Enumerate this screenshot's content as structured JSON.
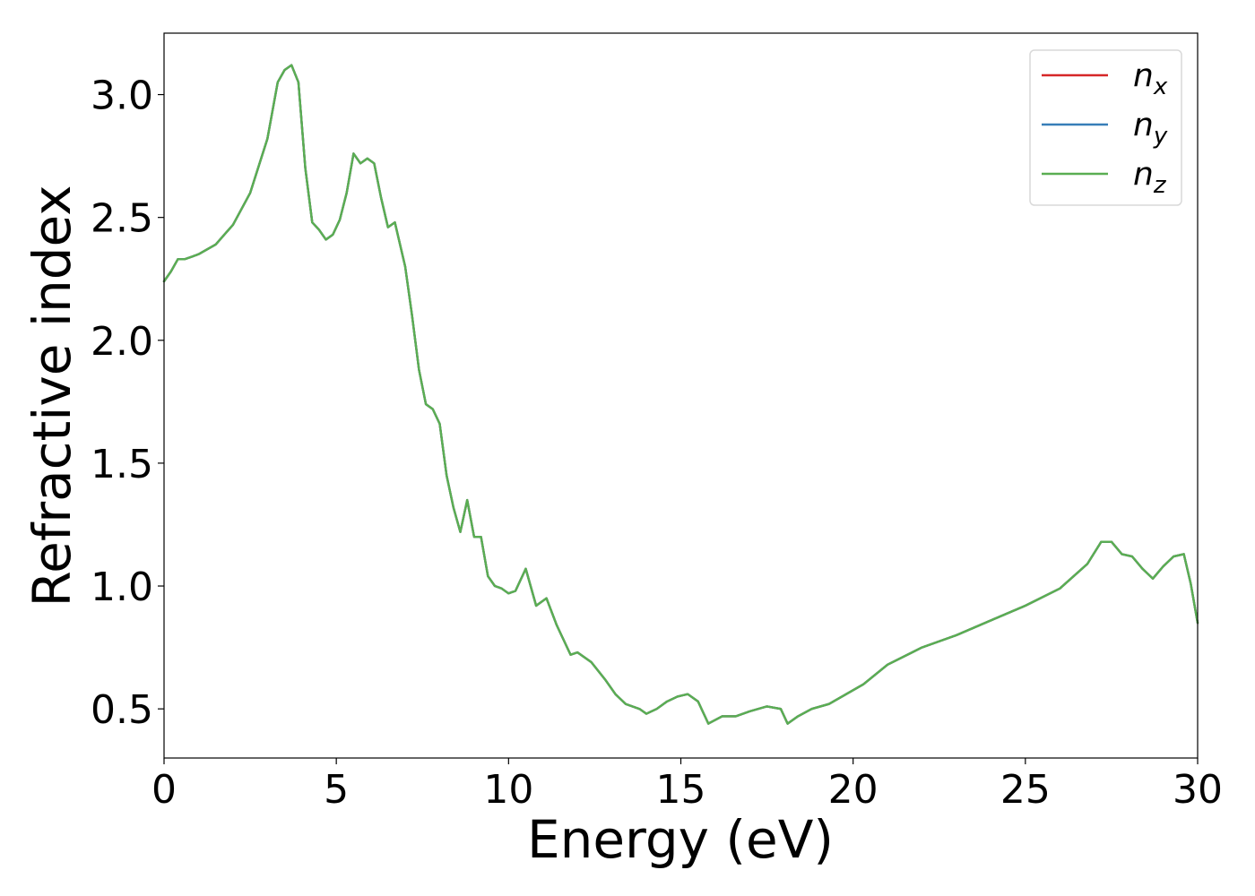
{
  "chart_data": {
    "type": "line",
    "xlabel": "Energy (eV)",
    "ylabel": "Refractive index",
    "xlim": [
      0,
      30
    ],
    "ylim": [
      0.3,
      3.25
    ],
    "xticks": [
      0,
      5,
      10,
      15,
      20,
      25,
      30
    ],
    "xtick_labels": [
      "0",
      "5",
      "10",
      "15",
      "20",
      "25",
      "30"
    ],
    "yticks": [
      0.5,
      1.0,
      1.5,
      2.0,
      2.5,
      3.0
    ],
    "ytick_labels": [
      "0.5",
      "1.0",
      "1.5",
      "2.0",
      "2.5",
      "3.0"
    ],
    "grid": false,
    "legend_position": "top-right",
    "x": [
      0,
      0.2,
      0.4,
      0.6,
      0.8,
      1.0,
      1.5,
      2.0,
      2.5,
      3.0,
      3.3,
      3.5,
      3.7,
      3.9,
      4.1,
      4.3,
      4.5,
      4.7,
      4.9,
      5.1,
      5.3,
      5.5,
      5.7,
      5.9,
      6.1,
      6.3,
      6.5,
      6.7,
      7.0,
      7.2,
      7.4,
      7.6,
      7.8,
      8.0,
      8.2,
      8.4,
      8.6,
      8.8,
      9.0,
      9.2,
      9.4,
      9.6,
      9.8,
      10.0,
      10.2,
      10.5,
      10.8,
      11.1,
      11.4,
      11.8,
      12.0,
      12.4,
      12.8,
      13.1,
      13.4,
      13.8,
      14.0,
      14.3,
      14.6,
      14.9,
      15.2,
      15.5,
      15.8,
      16.2,
      16.6,
      17.0,
      17.5,
      17.9,
      18.1,
      18.4,
      18.8,
      19.3,
      19.8,
      20.3,
      21.0,
      22.0,
      23.0,
      24.0,
      25.0,
      26.0,
      26.8,
      27.2,
      27.5,
      27.8,
      28.1,
      28.4,
      28.7,
      29.0,
      29.3,
      29.6,
      29.8,
      30.0
    ],
    "series": [
      {
        "name": "n_x",
        "color": "#d62728",
        "values": [
          2.24,
          2.28,
          2.33,
          2.33,
          2.34,
          2.35,
          2.39,
          2.47,
          2.6,
          2.82,
          3.05,
          3.1,
          3.12,
          3.05,
          2.7,
          2.48,
          2.45,
          2.41,
          2.43,
          2.49,
          2.6,
          2.76,
          2.72,
          2.74,
          2.72,
          2.58,
          2.46,
          2.48,
          2.3,
          2.1,
          1.88,
          1.74,
          1.72,
          1.66,
          1.45,
          1.32,
          1.22,
          1.35,
          1.2,
          1.2,
          1.04,
          1.0,
          0.99,
          0.97,
          0.98,
          1.07,
          0.92,
          0.95,
          0.84,
          0.72,
          0.73,
          0.69,
          0.62,
          0.56,
          0.52,
          0.5,
          0.48,
          0.5,
          0.53,
          0.55,
          0.56,
          0.53,
          0.44,
          0.47,
          0.47,
          0.49,
          0.51,
          0.5,
          0.44,
          0.47,
          0.5,
          0.52,
          0.56,
          0.6,
          0.68,
          0.75,
          0.8,
          0.86,
          0.92,
          0.99,
          1.09,
          1.18,
          1.18,
          1.13,
          1.12,
          1.07,
          1.03,
          1.08,
          1.12,
          1.13,
          1.01,
          0.85
        ]
      },
      {
        "name": "n_y",
        "color": "#377eb8",
        "values": [
          2.24,
          2.28,
          2.33,
          2.33,
          2.34,
          2.35,
          2.39,
          2.47,
          2.6,
          2.82,
          3.05,
          3.1,
          3.12,
          3.05,
          2.7,
          2.48,
          2.45,
          2.41,
          2.43,
          2.49,
          2.6,
          2.76,
          2.72,
          2.74,
          2.72,
          2.58,
          2.46,
          2.48,
          2.3,
          2.1,
          1.88,
          1.74,
          1.72,
          1.66,
          1.45,
          1.32,
          1.22,
          1.35,
          1.2,
          1.2,
          1.04,
          1.0,
          0.99,
          0.97,
          0.98,
          1.07,
          0.92,
          0.95,
          0.84,
          0.72,
          0.73,
          0.69,
          0.62,
          0.56,
          0.52,
          0.5,
          0.48,
          0.5,
          0.53,
          0.55,
          0.56,
          0.53,
          0.44,
          0.47,
          0.47,
          0.49,
          0.51,
          0.5,
          0.44,
          0.47,
          0.5,
          0.52,
          0.56,
          0.6,
          0.68,
          0.75,
          0.8,
          0.86,
          0.92,
          0.99,
          1.09,
          1.18,
          1.18,
          1.13,
          1.12,
          1.07,
          1.03,
          1.08,
          1.12,
          1.13,
          1.01,
          0.85
        ]
      },
      {
        "name": "n_z",
        "color": "#5aae52",
        "values": [
          2.24,
          2.28,
          2.33,
          2.33,
          2.34,
          2.35,
          2.39,
          2.47,
          2.6,
          2.82,
          3.05,
          3.1,
          3.12,
          3.05,
          2.7,
          2.48,
          2.45,
          2.41,
          2.43,
          2.49,
          2.6,
          2.76,
          2.72,
          2.74,
          2.72,
          2.58,
          2.46,
          2.48,
          2.3,
          2.1,
          1.88,
          1.74,
          1.72,
          1.66,
          1.45,
          1.32,
          1.22,
          1.35,
          1.2,
          1.2,
          1.04,
          1.0,
          0.99,
          0.97,
          0.98,
          1.07,
          0.92,
          0.95,
          0.84,
          0.72,
          0.73,
          0.69,
          0.62,
          0.56,
          0.52,
          0.5,
          0.48,
          0.5,
          0.53,
          0.55,
          0.56,
          0.53,
          0.44,
          0.47,
          0.47,
          0.49,
          0.51,
          0.5,
          0.44,
          0.47,
          0.5,
          0.52,
          0.56,
          0.6,
          0.68,
          0.75,
          0.8,
          0.86,
          0.92,
          0.99,
          1.09,
          1.18,
          1.18,
          1.13,
          1.12,
          1.07,
          1.03,
          1.08,
          1.12,
          1.13,
          1.01,
          0.85
        ]
      }
    ],
    "legend": [
      {
        "base": "n",
        "sub": "x",
        "color": "#d62728"
      },
      {
        "base": "n",
        "sub": "y",
        "color": "#377eb8"
      },
      {
        "base": "n",
        "sub": "z",
        "color": "#5aae52"
      }
    ]
  }
}
